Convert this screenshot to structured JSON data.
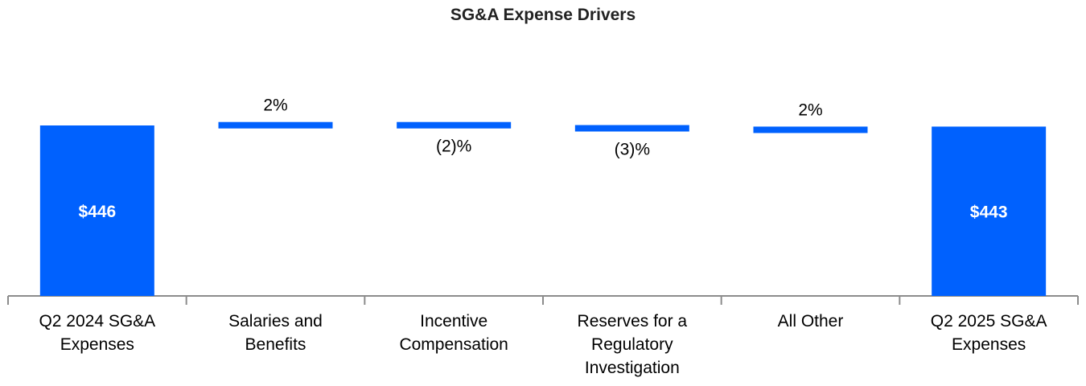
{
  "chart_data": {
    "type": "waterfall",
    "title": "SG&A Expense Drivers",
    "xlabel": "",
    "ylabel": "",
    "bar_color": "#0061FE",
    "categories": [
      "Q2 2024 SG&A Expenses",
      "Salaries and Benefits",
      "Incentive Compensation",
      "Reserves for a Regulatory Investigation",
      "All Other",
      "Q2 2025 SG&A Expenses"
    ],
    "category_lines": [
      [
        "Q2 2024 SG&A",
        "Expenses"
      ],
      [
        "Salaries and",
        "Benefits"
      ],
      [
        "Incentive",
        "Compensation"
      ],
      [
        "Reserves for a",
        "Regulatory",
        "Investigation"
      ],
      [
        "All Other"
      ],
      [
        "Q2 2025 SG&A",
        "Expenses"
      ]
    ],
    "bars": [
      {
        "kind": "total",
        "value": 446,
        "label": "$446"
      },
      {
        "kind": "change",
        "value": 9,
        "label": "2%"
      },
      {
        "kind": "change",
        "value": -8,
        "label": "(2)%"
      },
      {
        "kind": "change",
        "value": -13,
        "label": "(3)%"
      },
      {
        "kind": "change",
        "value": 9,
        "label": "2%"
      },
      {
        "kind": "total",
        "value": 443,
        "label": "$443"
      }
    ],
    "ylim": [
      0,
      520
    ]
  }
}
